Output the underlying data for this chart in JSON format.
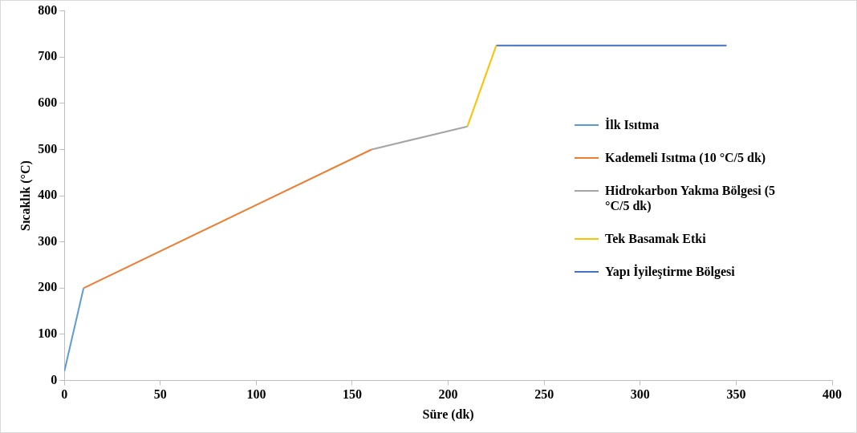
{
  "chart_data": {
    "type": "line",
    "xlabel": "Süre (dk)",
    "ylabel": "Sıcaklık (°C)",
    "xlim": [
      0,
      400
    ],
    "xticks": [
      0,
      50,
      100,
      150,
      200,
      250,
      300,
      350,
      400
    ],
    "ylim": [
      0,
      800
    ],
    "yticks": [
      0,
      100,
      200,
      300,
      400,
      500,
      600,
      700,
      800
    ],
    "grid": false,
    "legend": "right",
    "marker": "none",
    "series": [
      {
        "name": "İlk Isıtma",
        "color": "#5b9bd5",
        "x": [
          0,
          10
        ],
        "values": [
          20,
          200
        ]
      },
      {
        "name": "Kademeli Isıtma (10 °C/5 dk)",
        "color": "#ed7d31",
        "x": [
          10,
          160
        ],
        "values": [
          200,
          500
        ]
      },
      {
        "name": "Hidrokarbon Yakma Bölgesi (5 °C/5 dk)",
        "color": "#a5a5a5",
        "x": [
          160,
          210
        ],
        "values": [
          500,
          550
        ]
      },
      {
        "name": "Tek Basamak Etki",
        "color": "#ffc000",
        "x": [
          210,
          225
        ],
        "values": [
          550,
          725
        ]
      },
      {
        "name": "Yapı İyileştirme Bölgesi",
        "color": "#4472c4",
        "x": [
          225,
          345
        ],
        "values": [
          725,
          725
        ]
      }
    ]
  }
}
